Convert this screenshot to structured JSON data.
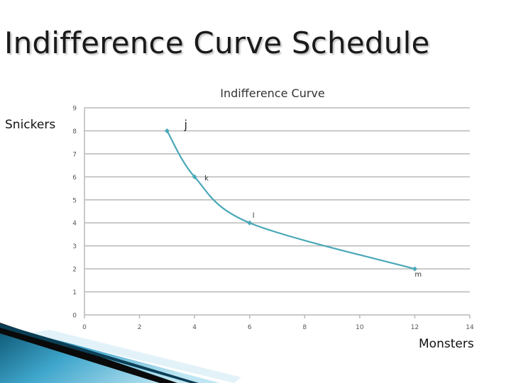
{
  "slide": {
    "title": "Indifference Curve Schedule",
    "y_axis_label": "Snickers",
    "x_axis_label": "Monsters"
  },
  "colors": {
    "line": "#4aa8b8",
    "grid": "#b8b8b8",
    "axis_text": "#555555",
    "corner_dark": "#0b5470",
    "corner_light": "#9ed6ea"
  },
  "chart_data": {
    "type": "line",
    "title": "Indifference Curve",
    "x": [
      3,
      4,
      6,
      12
    ],
    "y": [
      8,
      6,
      4,
      2
    ],
    "point_labels": [
      "j",
      "k",
      "l",
      "m"
    ],
    "xlim": [
      0,
      14
    ],
    "ylim": [
      0,
      9
    ],
    "x_ticks": [
      "0",
      "2",
      "4",
      "6",
      "8",
      "10",
      "12",
      "14"
    ],
    "y_ticks": [
      "0",
      "1",
      "2",
      "3",
      "4",
      "5",
      "6",
      "7",
      "8",
      "9"
    ],
    "grid": true,
    "smooth": true
  }
}
